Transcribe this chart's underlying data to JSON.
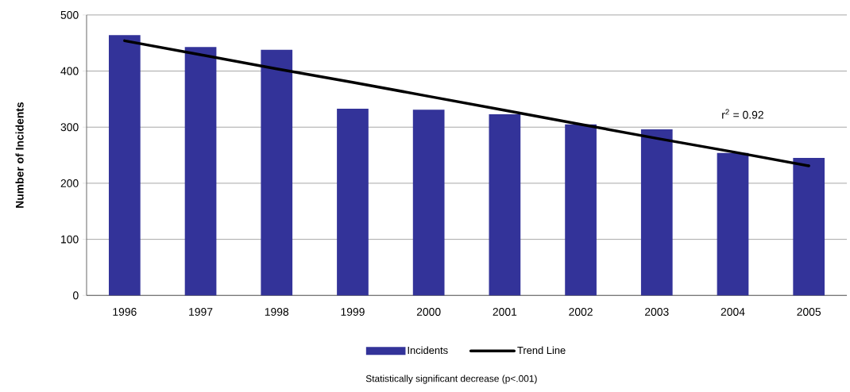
{
  "chart_data": {
    "type": "bar",
    "ylabel": "Number of Incidents",
    "categories": [
      "1996",
      "1997",
      "1998",
      "1999",
      "2000",
      "2001",
      "2002",
      "2003",
      "2004",
      "2005"
    ],
    "series": [
      {
        "name": "Incidents",
        "color": "#333399",
        "values": [
          464,
          443,
          438,
          333,
          331,
          323,
          305,
          296,
          254,
          245
        ]
      },
      {
        "name": "Trend Line",
        "type": "line",
        "color": "#000000",
        "values": [
          454,
          429,
          404,
          380,
          355,
          330,
          305,
          280,
          256,
          231
        ]
      }
    ],
    "ylim": [
      0,
      500
    ],
    "yticks": [
      0,
      100,
      200,
      300,
      400,
      500
    ],
    "grid": "y",
    "legend": "bottom",
    "annotations": [
      "r$^{2}$ = 0.92",
      "Statistically significant decrease  (p<.001)"
    ]
  }
}
